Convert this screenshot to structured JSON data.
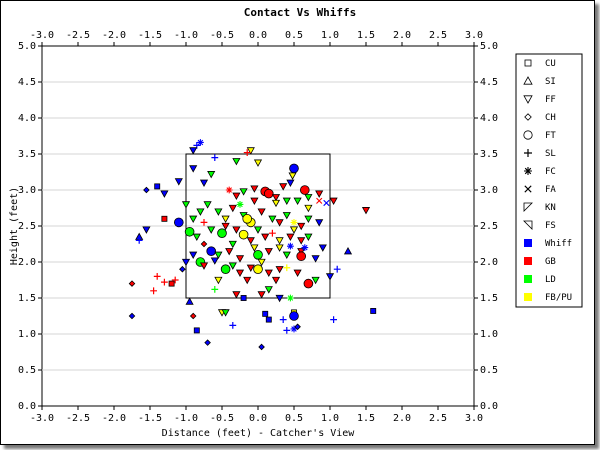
{
  "chart_data": {
    "type": "scatter",
    "title": "Contact Vs Whiffs",
    "xlabel": "Distance (feet) - Catcher's View",
    "ylabel": "Height (feet)",
    "xlim": [
      -3.0,
      3.0
    ],
    "ylim": [
      0.0,
      5.0
    ],
    "x_ticks": [
      "-3.0",
      "-2.5",
      "-2.0",
      "-1.5",
      "-1.0",
      "-0.5",
      "0.0",
      "0.5",
      "1.0",
      "1.5",
      "2.0",
      "2.5",
      "3.0"
    ],
    "y_ticks": [
      "0.0",
      "0.5",
      "1.0",
      "1.5",
      "2.0",
      "2.5",
      "3.0",
      "3.5",
      "4.0",
      "4.5",
      "5.0"
    ],
    "grid": "horizontal",
    "strike_zone": {
      "x": [
        -1.0,
        1.0
      ],
      "y": [
        1.5,
        3.5
      ]
    },
    "legend_position": "right",
    "legend": {
      "pitch_types": [
        {
          "code": "CU",
          "label": "CU"
        },
        {
          "code": "SI",
          "label": "SI"
        },
        {
          "code": "FF",
          "label": "FF"
        },
        {
          "code": "CH",
          "label": "CH"
        },
        {
          "code": "FT",
          "label": "FT"
        },
        {
          "code": "SL",
          "label": "SL"
        },
        {
          "code": "FC",
          "label": "FC"
        },
        {
          "code": "FA",
          "label": "FA"
        },
        {
          "code": "KN",
          "label": "KN"
        },
        {
          "code": "FS",
          "label": "FS"
        }
      ],
      "outcomes": [
        {
          "code": "W",
          "label": "Whiff",
          "color": "#0000ff"
        },
        {
          "code": "G",
          "label": "GB",
          "color": "#ff0000"
        },
        {
          "code": "L",
          "label": "LD",
          "color": "#00ff00"
        },
        {
          "code": "F",
          "label": "FB/PU",
          "color": "#ffff00"
        }
      ]
    },
    "points": [
      {
        "x": -0.85,
        "y": 3.62,
        "p": "SL",
        "o": "W"
      },
      {
        "x": -0.8,
        "y": 3.66,
        "p": "FC",
        "o": "W"
      },
      {
        "x": -0.9,
        "y": 3.55,
        "p": "FF",
        "o": "W"
      },
      {
        "x": -0.6,
        "y": 3.45,
        "p": "SL",
        "o": "W"
      },
      {
        "x": -0.3,
        "y": 3.4,
        "p": "FF",
        "o": "L"
      },
      {
        "x": -0.1,
        "y": 3.55,
        "p": "FF",
        "o": "F"
      },
      {
        "x": -0.15,
        "y": 3.52,
        "p": "SL",
        "o": "G"
      },
      {
        "x": 0.0,
        "y": 3.38,
        "p": "FF",
        "o": "F"
      },
      {
        "x": -0.65,
        "y": 3.22,
        "p": "FF",
        "o": "L"
      },
      {
        "x": -0.75,
        "y": 3.1,
        "p": "FF",
        "o": "W"
      },
      {
        "x": -0.9,
        "y": 3.3,
        "p": "FF",
        "o": "W"
      },
      {
        "x": -1.1,
        "y": 3.12,
        "p": "FF",
        "o": "W"
      },
      {
        "x": -1.4,
        "y": 3.05,
        "p": "CU",
        "o": "W"
      },
      {
        "x": -1.3,
        "y": 2.95,
        "p": "FF",
        "o": "W"
      },
      {
        "x": -1.55,
        "y": 3.0,
        "p": "CH",
        "o": "W"
      },
      {
        "x": -0.4,
        "y": 3.0,
        "p": "FC",
        "o": "G"
      },
      {
        "x": -0.3,
        "y": 2.92,
        "p": "FF",
        "o": "G"
      },
      {
        "x": -0.2,
        "y": 2.98,
        "p": "FF",
        "o": "L"
      },
      {
        "x": -0.05,
        "y": 3.02,
        "p": "FF",
        "o": "G"
      },
      {
        "x": 0.1,
        "y": 2.98,
        "p": "FT",
        "o": "G"
      },
      {
        "x": 0.15,
        "y": 2.95,
        "p": "FT",
        "o": "G"
      },
      {
        "x": 0.25,
        "y": 2.9,
        "p": "FF",
        "o": "G"
      },
      {
        "x": 0.35,
        "y": 3.05,
        "p": "FF",
        "o": "G"
      },
      {
        "x": 0.48,
        "y": 3.2,
        "p": "FF",
        "o": "F"
      },
      {
        "x": 0.5,
        "y": 3.3,
        "p": "FT",
        "o": "W"
      },
      {
        "x": 0.45,
        "y": 3.1,
        "p": "FF",
        "o": "W"
      },
      {
        "x": 0.65,
        "y": 3.0,
        "p": "FT",
        "o": "G"
      },
      {
        "x": 0.7,
        "y": 2.9,
        "p": "FF",
        "o": "L"
      },
      {
        "x": 0.55,
        "y": 2.85,
        "p": "FF",
        "o": "L"
      },
      {
        "x": 0.7,
        "y": 2.75,
        "p": "FF",
        "o": "F"
      },
      {
        "x": 0.85,
        "y": 2.85,
        "p": "FA",
        "o": "G"
      },
      {
        "x": 0.85,
        "y": 2.95,
        "p": "FF",
        "o": "G"
      },
      {
        "x": 0.95,
        "y": 2.82,
        "p": "FA",
        "o": "W"
      },
      {
        "x": 1.05,
        "y": 2.85,
        "p": "FF",
        "o": "G"
      },
      {
        "x": 1.5,
        "y": 2.72,
        "p": "FF",
        "o": "G"
      },
      {
        "x": 1.25,
        "y": 2.15,
        "p": "SI",
        "o": "W"
      },
      {
        "x": 1.1,
        "y": 1.9,
        "p": "SL",
        "o": "W"
      },
      {
        "x": 1.0,
        "y": 1.8,
        "p": "FF",
        "o": "W"
      },
      {
        "x": -1.0,
        "y": 2.8,
        "p": "FF",
        "o": "L"
      },
      {
        "x": -0.8,
        "y": 2.7,
        "p": "FF",
        "o": "L"
      },
      {
        "x": -0.7,
        "y": 2.8,
        "p": "FF",
        "o": "L"
      },
      {
        "x": -0.55,
        "y": 2.7,
        "p": "FF",
        "o": "L"
      },
      {
        "x": -0.45,
        "y": 2.6,
        "p": "FF",
        "o": "F"
      },
      {
        "x": -0.35,
        "y": 2.75,
        "p": "FF",
        "o": "G"
      },
      {
        "x": -0.2,
        "y": 2.65,
        "p": "FF",
        "o": "L"
      },
      {
        "x": -0.1,
        "y": 2.55,
        "p": "FT",
        "o": "F"
      },
      {
        "x": 0.05,
        "y": 2.7,
        "p": "FF",
        "o": "G"
      },
      {
        "x": 0.2,
        "y": 2.6,
        "p": "FF",
        "o": "L"
      },
      {
        "x": 0.3,
        "y": 2.55,
        "p": "FF",
        "o": "G"
      },
      {
        "x": 0.4,
        "y": 2.65,
        "p": "FF",
        "o": "L"
      },
      {
        "x": 0.5,
        "y": 2.55,
        "p": "FC",
        "o": "F"
      },
      {
        "x": 0.6,
        "y": 2.5,
        "p": "FF",
        "o": "G"
      },
      {
        "x": 0.7,
        "y": 2.6,
        "p": "FF",
        "o": "L"
      },
      {
        "x": -1.1,
        "y": 2.55,
        "p": "FT",
        "o": "W"
      },
      {
        "x": -1.3,
        "y": 2.6,
        "p": "CU",
        "o": "G"
      },
      {
        "x": -1.55,
        "y": 2.45,
        "p": "FF",
        "o": "W"
      },
      {
        "x": -1.65,
        "y": 2.35,
        "p": "SI",
        "o": "W"
      },
      {
        "x": -1.65,
        "y": 2.3,
        "p": "SL",
        "o": "W"
      },
      {
        "x": -0.95,
        "y": 2.42,
        "p": "FT",
        "o": "L"
      },
      {
        "x": -0.85,
        "y": 2.35,
        "p": "FF",
        "o": "L"
      },
      {
        "x": -0.75,
        "y": 2.25,
        "p": "CH",
        "o": "G"
      },
      {
        "x": -0.65,
        "y": 2.45,
        "p": "FF",
        "o": "L"
      },
      {
        "x": -0.5,
        "y": 2.4,
        "p": "FT",
        "o": "L"
      },
      {
        "x": -0.45,
        "y": 2.5,
        "p": "FF",
        "o": "G"
      },
      {
        "x": -0.3,
        "y": 2.45,
        "p": "FF",
        "o": "G"
      },
      {
        "x": -0.2,
        "y": 2.38,
        "p": "FT",
        "o": "F"
      },
      {
        "x": -0.1,
        "y": 2.3,
        "p": "FF",
        "o": "G"
      },
      {
        "x": 0.0,
        "y": 2.45,
        "p": "FF",
        "o": "L"
      },
      {
        "x": 0.1,
        "y": 2.35,
        "p": "FF",
        "o": "G"
      },
      {
        "x": 0.2,
        "y": 2.4,
        "p": "SL",
        "o": "G"
      },
      {
        "x": 0.3,
        "y": 2.3,
        "p": "FF",
        "o": "F"
      },
      {
        "x": 0.45,
        "y": 2.35,
        "p": "FF",
        "o": "G"
      },
      {
        "x": 0.6,
        "y": 2.3,
        "p": "FF",
        "o": "G"
      },
      {
        "x": 0.7,
        "y": 2.35,
        "p": "FF",
        "o": "L"
      },
      {
        "x": 0.45,
        "y": 2.22,
        "p": "FC",
        "o": "W"
      },
      {
        "x": -0.65,
        "y": 2.15,
        "p": "FT",
        "o": "W"
      },
      {
        "x": -0.55,
        "y": 2.1,
        "p": "FF",
        "o": "L"
      },
      {
        "x": -0.4,
        "y": 2.15,
        "p": "FF",
        "o": "G"
      },
      {
        "x": -0.25,
        "y": 2.05,
        "p": "FF",
        "o": "G"
      },
      {
        "x": -0.05,
        "y": 2.2,
        "p": "FF",
        "o": "F"
      },
      {
        "x": 0.0,
        "y": 2.1,
        "p": "FT",
        "o": "L"
      },
      {
        "x": 0.15,
        "y": 2.15,
        "p": "FF",
        "o": "G"
      },
      {
        "x": 0.3,
        "y": 2.2,
        "p": "FF",
        "o": "F"
      },
      {
        "x": 0.4,
        "y": 2.1,
        "p": "FF",
        "o": "L"
      },
      {
        "x": 0.6,
        "y": 2.15,
        "p": "FF",
        "o": "G"
      },
      {
        "x": 0.6,
        "y": 2.08,
        "p": "FT",
        "o": "G"
      },
      {
        "x": 0.8,
        "y": 2.05,
        "p": "FF",
        "o": "W"
      },
      {
        "x": -0.9,
        "y": 2.1,
        "p": "FF",
        "o": "W"
      },
      {
        "x": -1.0,
        "y": 2.0,
        "p": "FF",
        "o": "W"
      },
      {
        "x": -0.8,
        "y": 2.0,
        "p": "FT",
        "o": "L"
      },
      {
        "x": -0.75,
        "y": 1.95,
        "p": "FF",
        "o": "G"
      },
      {
        "x": -0.6,
        "y": 2.02,
        "p": "FF",
        "o": "W"
      },
      {
        "x": -0.45,
        "y": 1.9,
        "p": "FT",
        "o": "L"
      },
      {
        "x": -0.35,
        "y": 1.95,
        "p": "FF",
        "o": "L"
      },
      {
        "x": -0.25,
        "y": 1.85,
        "p": "FF",
        "o": "G"
      },
      {
        "x": -0.1,
        "y": 1.92,
        "p": "FF",
        "o": "G"
      },
      {
        "x": 0.0,
        "y": 1.9,
        "p": "FT",
        "o": "F"
      },
      {
        "x": 0.15,
        "y": 1.85,
        "p": "FF",
        "o": "G"
      },
      {
        "x": 0.3,
        "y": 1.9,
        "p": "FF",
        "o": "G"
      },
      {
        "x": 0.4,
        "y": 1.92,
        "p": "SL",
        "o": "F"
      },
      {
        "x": 0.55,
        "y": 1.85,
        "p": "FF",
        "o": "G"
      },
      {
        "x": 0.7,
        "y": 1.7,
        "p": "FT",
        "o": "G"
      },
      {
        "x": 0.8,
        "y": 1.75,
        "p": "FF",
        "o": "L"
      },
      {
        "x": -1.05,
        "y": 1.9,
        "p": "CH",
        "o": "W"
      },
      {
        "x": -1.15,
        "y": 1.75,
        "p": "SL",
        "o": "G"
      },
      {
        "x": -1.3,
        "y": 1.72,
        "p": "SL",
        "o": "G"
      },
      {
        "x": -1.4,
        "y": 1.8,
        "p": "SL",
        "o": "G"
      },
      {
        "x": -1.45,
        "y": 1.6,
        "p": "SL",
        "o": "G"
      },
      {
        "x": -1.2,
        "y": 1.7,
        "p": "CU",
        "o": "G"
      },
      {
        "x": -1.75,
        "y": 1.7,
        "p": "CH",
        "o": "G"
      },
      {
        "x": -0.6,
        "y": 1.62,
        "p": "SL",
        "o": "L"
      },
      {
        "x": -0.3,
        "y": 1.55,
        "p": "FF",
        "o": "G"
      },
      {
        "x": -0.2,
        "y": 1.5,
        "p": "CU",
        "o": "W"
      },
      {
        "x": 0.05,
        "y": 1.55,
        "p": "FF",
        "o": "G"
      },
      {
        "x": 0.15,
        "y": 1.62,
        "p": "FF",
        "o": "L"
      },
      {
        "x": 0.3,
        "y": 1.5,
        "p": "FF",
        "o": "W"
      },
      {
        "x": 0.45,
        "y": 1.5,
        "p": "FC",
        "o": "L"
      },
      {
        "x": -0.95,
        "y": 1.45,
        "p": "SI",
        "o": "W"
      },
      {
        "x": -0.5,
        "y": 1.3,
        "p": "FF",
        "o": "F"
      },
      {
        "x": -0.45,
        "y": 1.3,
        "p": "FF",
        "o": "L"
      },
      {
        "x": -0.9,
        "y": 1.25,
        "p": "CH",
        "o": "G"
      },
      {
        "x": -0.35,
        "y": 1.12,
        "p": "SL",
        "o": "W"
      },
      {
        "x": 0.1,
        "y": 1.28,
        "p": "CU",
        "o": "W"
      },
      {
        "x": 0.15,
        "y": 1.2,
        "p": "CU",
        "o": "W"
      },
      {
        "x": 0.35,
        "y": 1.2,
        "p": "SL",
        "o": "W"
      },
      {
        "x": 0.5,
        "y": 1.3,
        "p": "CU",
        "o": "F"
      },
      {
        "x": 0.5,
        "y": 1.25,
        "p": "FT",
        "o": "W"
      },
      {
        "x": -1.75,
        "y": 1.25,
        "p": "CH",
        "o": "W"
      },
      {
        "x": -0.85,
        "y": 1.05,
        "p": "CU",
        "o": "W"
      },
      {
        "x": 0.4,
        "y": 1.05,
        "p": "SL",
        "o": "W"
      },
      {
        "x": 0.5,
        "y": 1.07,
        "p": "FC",
        "o": "W"
      },
      {
        "x": 0.55,
        "y": 1.1,
        "p": "CH",
        "o": "W"
      },
      {
        "x": -0.7,
        "y": 0.88,
        "p": "CH",
        "o": "W"
      },
      {
        "x": 0.05,
        "y": 0.82,
        "p": "CH",
        "o": "W"
      },
      {
        "x": 1.05,
        "y": 1.2,
        "p": "SL",
        "o": "W"
      },
      {
        "x": 1.6,
        "y": 1.32,
        "p": "CU",
        "o": "W"
      },
      {
        "x": -0.25,
        "y": 2.8,
        "p": "FC",
        "o": "L"
      },
      {
        "x": -0.05,
        "y": 2.85,
        "p": "FF",
        "o": "G"
      },
      {
        "x": 0.25,
        "y": 2.82,
        "p": "FF",
        "o": "F"
      },
      {
        "x": 0.4,
        "y": 2.85,
        "p": "FF",
        "o": "L"
      },
      {
        "x": 0.5,
        "y": 2.45,
        "p": "FF",
        "o": "F"
      },
      {
        "x": 0.65,
        "y": 2.2,
        "p": "FC",
        "o": "W"
      },
      {
        "x": -0.15,
        "y": 2.6,
        "p": "FT",
        "o": "F"
      },
      {
        "x": -0.35,
        "y": 2.25,
        "p": "FF",
        "o": "L"
      },
      {
        "x": 0.05,
        "y": 2.0,
        "p": "FF",
        "o": "F"
      },
      {
        "x": 0.25,
        "y": 1.75,
        "p": "FF",
        "o": "G"
      },
      {
        "x": -0.55,
        "y": 1.75,
        "p": "FF",
        "o": "F"
      },
      {
        "x": -0.15,
        "y": 1.75,
        "p": "FF",
        "o": "G"
      },
      {
        "x": -0.9,
        "y": 2.6,
        "p": "FF",
        "o": "L"
      },
      {
        "x": -0.75,
        "y": 2.55,
        "p": "SL",
        "o": "G"
      },
      {
        "x": 0.85,
        "y": 2.55,
        "p": "FF",
        "o": "W"
      },
      {
        "x": 0.9,
        "y": 2.2,
        "p": "FF",
        "o": "W"
      }
    ]
  }
}
